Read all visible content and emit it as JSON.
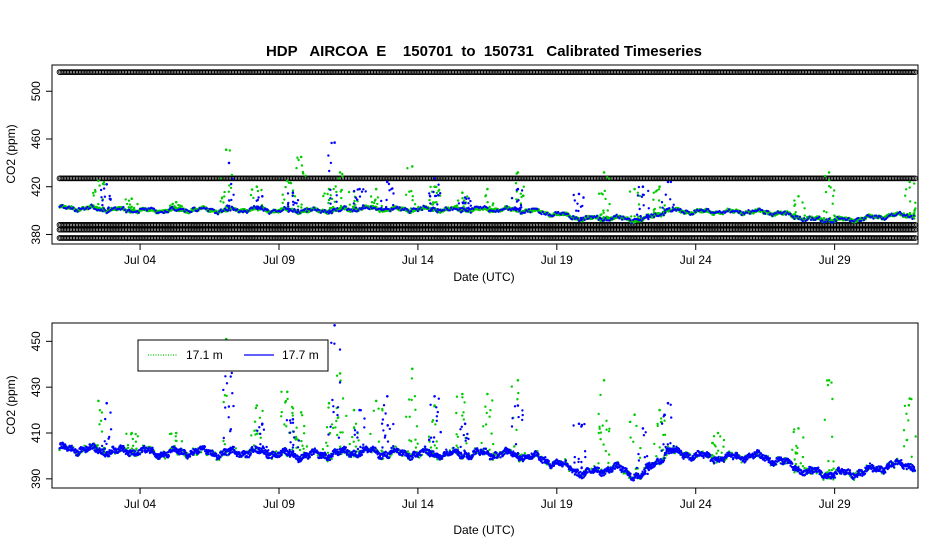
{
  "chart_data": [
    {
      "type": "scatter",
      "title": "HDP   AIRCOA  E    150701  to  150731   Calibrated Timeseries",
      "xlabel": "Date (UTC)",
      "ylabel": "CO2 (ppm)",
      "x_unit": "day of July 2015 (UTC)",
      "xlim": [
        0.83,
        32.0
      ],
      "ylim": [
        372,
        522
      ],
      "xticks": [
        4,
        9,
        14,
        19,
        24,
        29
      ],
      "xtick_labels": [
        "Jul 04",
        "Jul 09",
        "Jul 14",
        "Jul 19",
        "Jul 24",
        "Jul 29"
      ],
      "yticks": [
        380,
        420,
        460,
        500
      ],
      "ytick_labels": [
        "380",
        "420",
        "460",
        "500"
      ],
      "series": [
        {
          "name": "flag/reference marker rows (open circles)",
          "color": "#000000",
          "marker": "open-circle",
          "x_range": [
            1.1,
            31.9
          ],
          "y_levels": [
            516,
            427,
            388,
            384,
            377
          ]
        },
        {
          "name": "17.1 m",
          "color": "#00cc00",
          "marker": "dot",
          "baseline": [
            [
              1.1,
              402
            ],
            [
              2,
              402
            ],
            [
              3,
              401
            ],
            [
              4,
              400
            ],
            [
              5,
              400
            ],
            [
              6,
              401
            ],
            [
              7,
              400
            ],
            [
              8,
              401
            ],
            [
              9,
              400
            ],
            [
              10,
              400
            ],
            [
              11,
              400
            ],
            [
              12,
              402
            ],
            [
              13,
              401
            ],
            [
              14,
              401
            ],
            [
              15,
              401
            ],
            [
              16,
              401
            ],
            [
              17,
              401
            ],
            [
              18,
              400
            ],
            [
              19,
              397
            ],
            [
              20,
              393
            ],
            [
              21,
              394
            ],
            [
              22,
              392
            ],
            [
              23,
              400
            ],
            [
              24,
              399
            ],
            [
              25,
              399
            ],
            [
              26,
              399
            ],
            [
              27,
              398
            ],
            [
              28,
              393
            ],
            [
              29,
              392
            ],
            [
              30,
              393
            ],
            [
              31,
              396
            ],
            [
              31.9,
              396
            ]
          ],
          "spikes": [
            [
              2.5,
              425
            ],
            [
              3.7,
              410
            ],
            [
              5.3,
              407
            ],
            [
              7.1,
              451
            ],
            [
              8.2,
              420
            ],
            [
              9.3,
              425
            ],
            [
              9.8,
              445
            ],
            [
              10.8,
              418
            ],
            [
              11.2,
              432
            ],
            [
              11.7,
              416
            ],
            [
              12.5,
              418
            ],
            [
              13.8,
              437
            ],
            [
              14.6,
              420
            ],
            [
              15.6,
              415
            ],
            [
              16.5,
              418
            ],
            [
              17.6,
              432
            ],
            [
              20.7,
              432
            ],
            [
              21.8,
              418
            ],
            [
              22.7,
              420
            ],
            [
              27.7,
              412
            ],
            [
              28.8,
              432
            ],
            [
              31.7,
              424
            ]
          ]
        },
        {
          "name": "17.7 m",
          "color": "#0000ff",
          "marker": "dot",
          "baseline": [
            [
              1.1,
              402
            ],
            [
              2,
              402
            ],
            [
              3,
              401
            ],
            [
              4,
              400
            ],
            [
              5,
              400
            ],
            [
              6,
              401
            ],
            [
              7,
              400
            ],
            [
              8,
              401
            ],
            [
              9,
              400
            ],
            [
              10,
              400
            ],
            [
              11,
              400
            ],
            [
              12,
              402
            ],
            [
              13,
              401
            ],
            [
              14,
              401
            ],
            [
              15,
              401
            ],
            [
              16,
              401
            ],
            [
              17,
              401
            ],
            [
              18,
              400
            ],
            [
              19,
              397
            ],
            [
              20,
              393
            ],
            [
              21,
              394
            ],
            [
              22,
              392
            ],
            [
              23,
              400
            ],
            [
              24,
              399
            ],
            [
              25,
              399
            ],
            [
              26,
              399
            ],
            [
              27,
              398
            ],
            [
              28,
              393
            ],
            [
              29,
              392
            ],
            [
              30,
              393
            ],
            [
              31,
              396
            ],
            [
              31.9,
              396
            ]
          ],
          "spikes": [
            [
              2.8,
              422
            ],
            [
              7.2,
              440
            ],
            [
              8.4,
              412
            ],
            [
              9.5,
              415
            ],
            [
              11.0,
              457
            ],
            [
              11.9,
              418
            ],
            [
              12.9,
              424
            ],
            [
              14.6,
              427
            ],
            [
              15.7,
              411
            ],
            [
              17.6,
              418
            ],
            [
              19.8,
              414
            ],
            [
              22.1,
              420
            ],
            [
              23.0,
              424
            ]
          ]
        }
      ]
    },
    {
      "type": "scatter",
      "title": "",
      "xlabel": "Date (UTC)",
      "ylabel": "CO2 (ppm)",
      "x_unit": "day of July 2015 (UTC)",
      "xlim": [
        0.83,
        32.0
      ],
      "ylim": [
        386,
        458
      ],
      "xticks": [
        4,
        9,
        14,
        19,
        24,
        29
      ],
      "xtick_labels": [
        "Jul 04",
        "Jul 09",
        "Jul 14",
        "Jul 19",
        "Jul 24",
        "Jul 29"
      ],
      "yticks": [
        390,
        410,
        430,
        450
      ],
      "ytick_labels": [
        "390",
        "410",
        "430",
        "450"
      ],
      "legend": {
        "placement": "top-left",
        "entries": [
          {
            "label": "17.1 m",
            "color": "#00cc00",
            "style": "dotted"
          },
          {
            "label": "17.7 m",
            "color": "#0000ff",
            "style": "solid"
          }
        ]
      },
      "series": [
        {
          "name": "17.1 m",
          "color": "#00cc00",
          "marker": "dot",
          "baseline": [
            [
              1.1,
              403
            ],
            [
              2,
              403
            ],
            [
              3,
              402
            ],
            [
              4,
              402
            ],
            [
              5,
              401
            ],
            [
              6,
              402
            ],
            [
              7,
              401
            ],
            [
              8,
              402
            ],
            [
              9,
              401
            ],
            [
              10,
              400
            ],
            [
              11,
              401
            ],
            [
              12,
              402
            ],
            [
              13,
              401
            ],
            [
              14,
              401
            ],
            [
              15,
              401
            ],
            [
              16,
              401
            ],
            [
              17,
              401
            ],
            [
              18,
              400
            ],
            [
              19,
              397
            ],
            [
              20,
              392
            ],
            [
              21,
              395
            ],
            [
              22,
              391
            ],
            [
              23,
              402
            ],
            [
              24,
              400
            ],
            [
              25,
              399
            ],
            [
              26,
              400
            ],
            [
              27,
              398
            ],
            [
              28,
              393
            ],
            [
              29,
              392
            ],
            [
              30,
              393
            ],
            [
              31,
              396
            ],
            [
              31.9,
              396
            ]
          ],
          "spikes": [
            [
              2.5,
              424
            ],
            [
              3.7,
              410
            ],
            [
              5.3,
              410
            ],
            [
              7.1,
              451
            ],
            [
              8.2,
              422
            ],
            [
              9.3,
              428
            ],
            [
              9.8,
              419
            ],
            [
              10.8,
              423
            ],
            [
              11.2,
              436
            ],
            [
              11.7,
              420
            ],
            [
              12.5,
              424
            ],
            [
              13.8,
              438
            ],
            [
              14.6,
              422
            ],
            [
              15.6,
              427
            ],
            [
              16.5,
              427
            ],
            [
              17.6,
              433
            ],
            [
              20.7,
              433
            ],
            [
              21.8,
              418
            ],
            [
              22.7,
              420
            ],
            [
              24.8,
              410
            ],
            [
              27.7,
              412
            ],
            [
              28.8,
              433
            ],
            [
              31.7,
              425
            ]
          ]
        },
        {
          "name": "17.7 m",
          "color": "#0000ff",
          "marker": "dot",
          "baseline": [
            [
              1.1,
              403
            ],
            [
              2,
              403
            ],
            [
              3,
              402
            ],
            [
              4,
              402
            ],
            [
              5,
              401
            ],
            [
              6,
              402
            ],
            [
              7,
              401
            ],
            [
              8,
              402
            ],
            [
              9,
              401
            ],
            [
              10,
              400
            ],
            [
              11,
              401
            ],
            [
              12,
              402
            ],
            [
              13,
              401
            ],
            [
              14,
              401
            ],
            [
              15,
              401
            ],
            [
              16,
              401
            ],
            [
              17,
              401
            ],
            [
              18,
              400
            ],
            [
              19,
              397
            ],
            [
              20,
              392
            ],
            [
              21,
              395
            ],
            [
              22,
              391
            ],
            [
              23,
              402
            ],
            [
              24,
              400
            ],
            [
              25,
              399
            ],
            [
              26,
              400
            ],
            [
              27,
              398
            ],
            [
              28,
              393
            ],
            [
              29,
              392
            ],
            [
              30,
              393
            ],
            [
              31,
              396
            ],
            [
              31.9,
              396
            ]
          ],
          "spikes": [
            [
              2.8,
              423
            ],
            [
              7.2,
              438
            ],
            [
              8.4,
              414
            ],
            [
              9.5,
              416
            ],
            [
              11.0,
              457
            ],
            [
              11.9,
              420
            ],
            [
              12.9,
              426
            ],
            [
              14.6,
              426
            ],
            [
              15.7,
              414
            ],
            [
              17.6,
              422
            ],
            [
              19.8,
              414
            ],
            [
              22.1,
              412
            ],
            [
              23.0,
              423
            ]
          ]
        }
      ]
    }
  ]
}
